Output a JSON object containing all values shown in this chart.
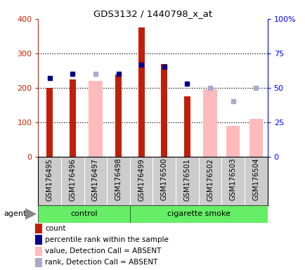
{
  "title": "GDS3132 / 1440798_x_at",
  "samples": [
    "GSM176495",
    "GSM176496",
    "GSM176497",
    "GSM176498",
    "GSM176499",
    "GSM176500",
    "GSM176501",
    "GSM176502",
    "GSM176503",
    "GSM176504"
  ],
  "n_control": 4,
  "n_smoke": 6,
  "count": [
    200,
    225,
    null,
    238,
    375,
    270,
    175,
    null,
    null,
    null
  ],
  "percentile": [
    57,
    60,
    null,
    60,
    67,
    65,
    53,
    null,
    null,
    null
  ],
  "val_absent": [
    null,
    null,
    220,
    null,
    null,
    null,
    null,
    195,
    90,
    110
  ],
  "rank_absent": [
    null,
    null,
    60,
    null,
    null,
    null,
    null,
    50,
    40,
    50
  ],
  "left_ylim": [
    0,
    400
  ],
  "right_ylim": [
    0,
    100
  ],
  "left_yticks": [
    0,
    100,
    200,
    300,
    400
  ],
  "right_yticks": [
    0,
    25,
    50,
    75,
    100
  ],
  "right_yticklabels": [
    "0",
    "25",
    "50",
    "75",
    "100%"
  ],
  "color_count": "#c0200a",
  "color_pct": "#00008b",
  "color_val_absent": "#ffbbbb",
  "color_rank_absent": "#aaaacc",
  "green_bg": "#66ee66",
  "gray_bg": "#cccccc",
  "control_label": "control",
  "smoke_label": "cigarette smoke",
  "agent_label": "agent",
  "legend": [
    {
      "color": "#c0200a",
      "label": "count"
    },
    {
      "color": "#00008b",
      "label": "percentile rank within the sample"
    },
    {
      "color": "#ffbbbb",
      "label": "value, Detection Call = ABSENT"
    },
    {
      "color": "#aaaacc",
      "label": "rank, Detection Call = ABSENT"
    }
  ]
}
